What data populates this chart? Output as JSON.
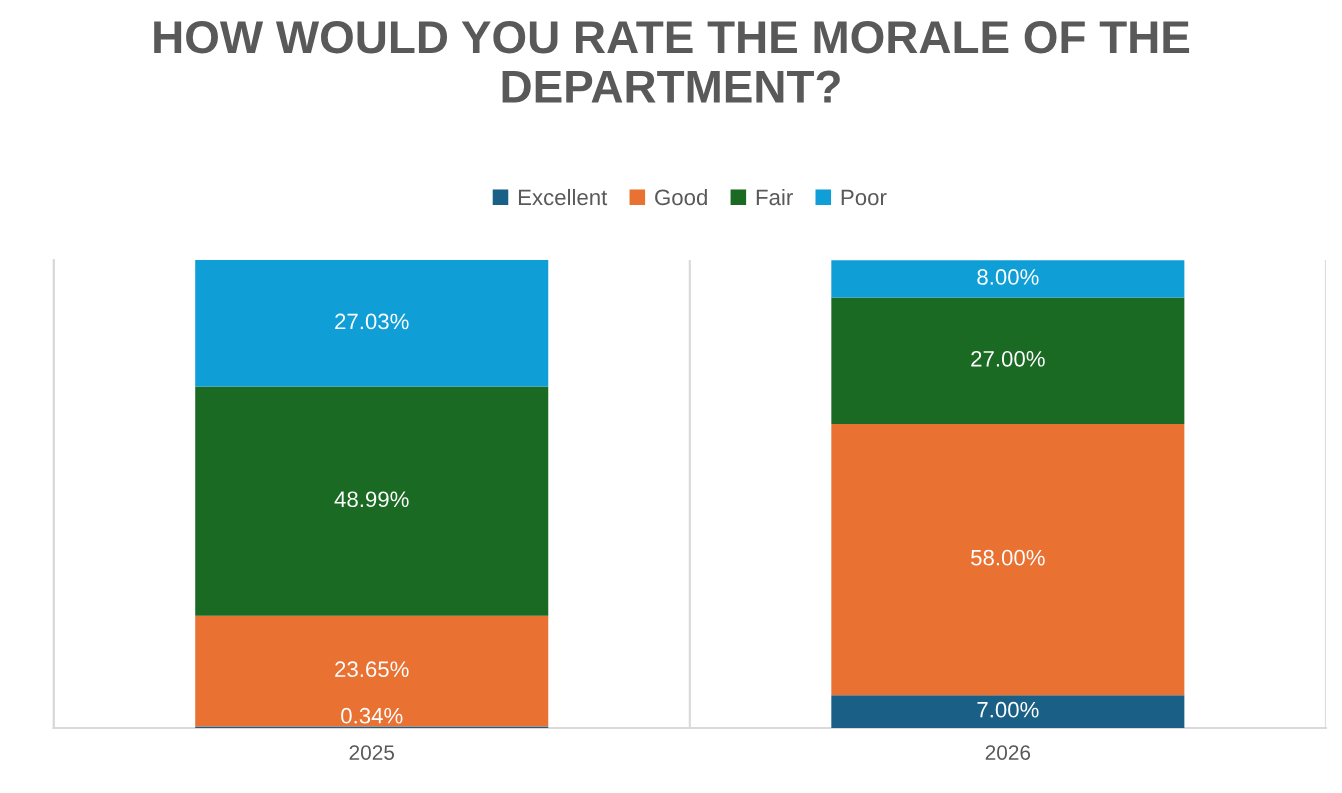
{
  "chart_data": {
    "type": "bar",
    "stacked": true,
    "title": "HOW WOULD YOU RATE THE MORALE OF THE DEPARTMENT?",
    "categories": [
      "2025",
      "2026"
    ],
    "series": [
      {
        "name": "Excellent",
        "color": "#1a5f85",
        "values": [
          0.34,
          7.0
        ],
        "value_labels": [
          "0.34%",
          "7.00%"
        ]
      },
      {
        "name": "Good",
        "color": "#e97132",
        "values": [
          23.65,
          58.0
        ],
        "value_labels": [
          "23.65%",
          "58.00%"
        ]
      },
      {
        "name": "Fair",
        "color": "#1b6a23",
        "values": [
          48.99,
          27.0
        ],
        "value_labels": [
          "48.99%",
          "27.00%"
        ]
      },
      {
        "name": "Poor",
        "color": "#0f9ed5",
        "values": [
          27.03,
          8.0
        ],
        "value_labels": [
          "27.03%",
          "8.00%"
        ]
      }
    ],
    "legend": "top",
    "grid": "x",
    "tick_labels": "x"
  }
}
